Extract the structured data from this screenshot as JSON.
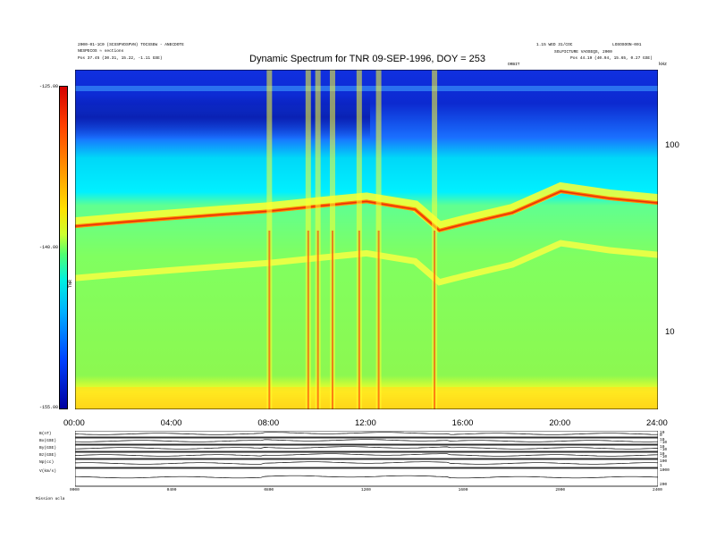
{
  "header": {
    "left_line1": "2000-01-1C0 (SCSSPVDSPVN) TOCSSEW - ANECDOTE",
    "left_line2": "NESPECOS ≈ sections",
    "left_line3": "Pos    37.45 (30.31, 15.22, -1.11 GSE)",
    "right_line1": "1.15 WED 31/COC",
    "right_line2": "SOLPICTURE VAOSEQS, 2000",
    "right_line3": "Pos    44.19 (40.94, 15.65, 0.27 GSE)",
    "right_corner": "LOSOSOON-001",
    "center_small": "ORBIT"
  },
  "chart_data": {
    "type": "heatmap",
    "title": "Dynamic Spectrum for TNR 09-SEP-1996, DOY = 253",
    "x_tick_labels": [
      "00:00",
      "04:00",
      "08:00",
      "12:00",
      "16:00",
      "20:00",
      "24:00"
    ],
    "x_range": [
      0,
      24
    ],
    "y_scale": "log",
    "y_tick_labels": [
      "100",
      "10"
    ],
    "y_unit": "kHz",
    "colorbar_tick_labels": [
      "-125.00",
      "-140.00",
      "-155.00"
    ],
    "colorbar_label": "TNR",
    "colorbar_range": [
      -155,
      -125
    ],
    "features": {
      "plasma_line_hours": [
        0,
        2,
        4,
        6,
        8,
        10,
        12,
        14,
        15,
        16,
        18,
        20,
        22,
        24
      ],
      "plasma_line_khz": [
        39,
        41,
        43,
        45,
        47,
        50,
        53,
        48,
        37,
        40,
        46,
        60,
        55,
        52
      ],
      "bursts_hours": [
        8.0,
        9.6,
        10.0,
        10.6,
        11.7,
        12.5,
        14.8
      ]
    }
  },
  "mag_panels": {
    "labels": [
      "B(nT)",
      "Bx(GSE)",
      "By(GSE)",
      "Bz(GSE)",
      "Np(cc)",
      "V(km/s)"
    ],
    "right_ticks": [
      [
        "10",
        "0"
      ],
      [
        "10",
        "-10"
      ],
      [
        "10",
        "-10"
      ],
      [
        "10",
        "-10"
      ],
      [
        "100",
        "1"
      ],
      [
        "1000",
        "200"
      ]
    ],
    "x_tick_labels": [
      "0000",
      "0400",
      "0800",
      "1200",
      "1600",
      "2000",
      "2400"
    ],
    "footer_left": "Mission    ucla"
  }
}
